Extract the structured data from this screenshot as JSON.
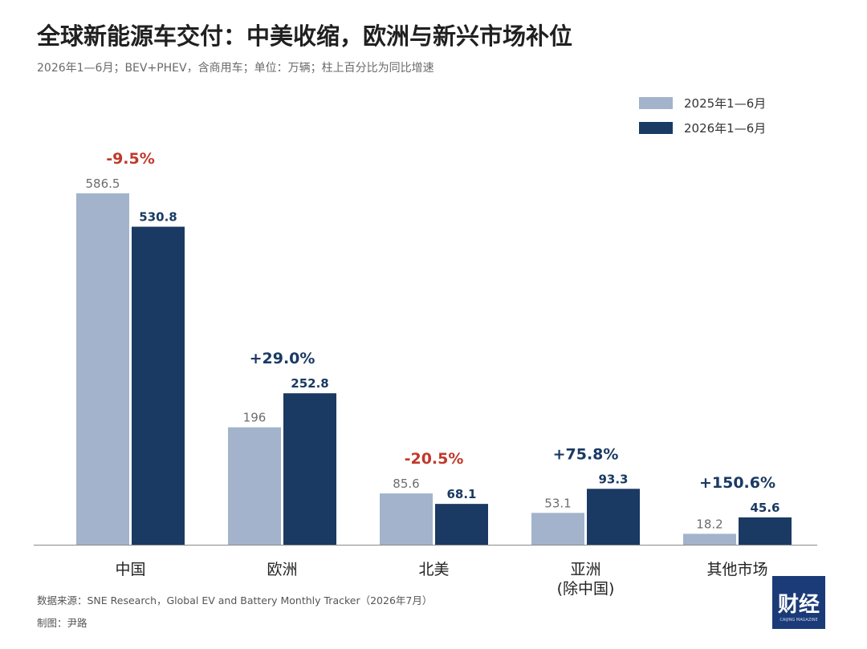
{
  "header": {
    "title": "全球新能源车交付：中美收缩，欧洲与新兴市场补位",
    "subtitle": "2026年1—6月；BEV+PHEV，含商用车；单位：万辆；柱上百分比为同比增速"
  },
  "footer": {
    "source": "数据来源：SNE Research，Global EV and Battery Monthly Tracker（2026年7月）",
    "credit": "制图：尹路"
  },
  "logo": {
    "text": "财经",
    "sub": "CAIJING MAGAZINE"
  },
  "colors": {
    "series_2025": "#a3b3cb",
    "series_2026": "#1a3a63",
    "negative": "#c0392b",
    "positive": "#1a3a63",
    "label_2025": "#6d6d6d",
    "label_2026": "#1a3a63"
  },
  "chart_data": {
    "type": "bar",
    "categories": [
      "中国",
      "欧洲",
      "北美",
      "亚洲\n(除中国)",
      "其他市场"
    ],
    "series": [
      {
        "name": "2025年1—6月",
        "values": [
          586.5,
          196,
          85.6,
          53.1,
          18.2
        ],
        "labels": [
          "586.5",
          "196",
          "85.6",
          "53.1",
          "18.2"
        ]
      },
      {
        "name": "2026年1—6月",
        "values": [
          530.8,
          252.8,
          68.1,
          93.3,
          45.6
        ],
        "labels": [
          "530.8",
          "252.8",
          "68.1",
          "93.3",
          "45.6"
        ]
      }
    ],
    "growth": [
      "-9.5%",
      "+29.0%",
      "-20.5%",
      "+75.8%",
      "+150.6%"
    ],
    "ylim": [
      0,
      586.5
    ],
    "legend_position": "top-right",
    "grid": false
  }
}
